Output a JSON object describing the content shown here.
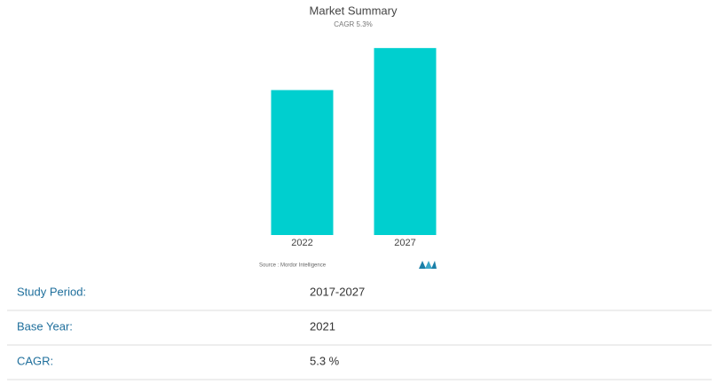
{
  "chart_data": {
    "type": "bar",
    "title": "Market Summary",
    "subtitle": "CAGR 5.3%",
    "categories": [
      "2022",
      "2027"
    ],
    "values": [
      100,
      129
    ],
    "color": "#00cfcf",
    "ylim": [
      0,
      134
    ],
    "source": "Source : Mordor Intelligence"
  },
  "table": {
    "rows": [
      [
        "Study Period:",
        "2017-2027"
      ],
      [
        "Base Year:",
        "2021"
      ],
      [
        "CAGR:",
        "5.3 %"
      ]
    ]
  }
}
